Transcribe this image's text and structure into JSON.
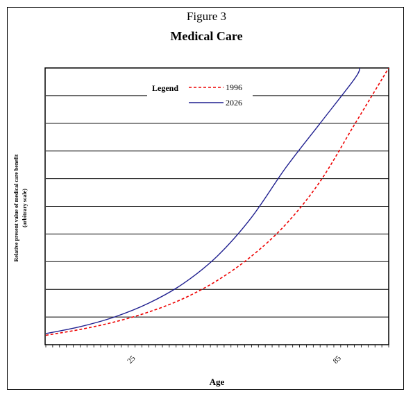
{
  "figure": {
    "label": "Figure 3",
    "title": "Medical Care"
  },
  "chart_data": {
    "type": "line",
    "title": "Medical Care",
    "xlabel": "Age",
    "ylabel_line1": "Relative present value of medical care benefit",
    "ylabel_line2": "(arbitrary scale)",
    "x_tick_labels": [
      {
        "label": "25",
        "x": 25
      },
      {
        "label": "85",
        "x": 85
      }
    ],
    "xlim": [
      0,
      100
    ],
    "ylim": [
      0,
      10
    ],
    "y_tick_labels": [],
    "grid": "horizontal",
    "legend": {
      "title": "Legend",
      "placement": "top-center"
    },
    "series": [
      {
        "name": "1996",
        "style": "dashed",
        "color": "#ee0000",
        "x": [
          0,
          10,
          20,
          30,
          40,
          50,
          60,
          70,
          80,
          90,
          100
        ],
        "y": [
          0.34,
          0.55,
          0.82,
          1.18,
          1.66,
          2.32,
          3.2,
          4.35,
          5.9,
          7.95,
          10.0
        ]
      },
      {
        "name": "2026",
        "style": "solid",
        "color": "#1f1f8f",
        "x": [
          0,
          10,
          20,
          30,
          40,
          50,
          60,
          70,
          80,
          90,
          91.6
        ],
        "y": [
          0.4,
          0.65,
          1.0,
          1.5,
          2.2,
          3.2,
          4.6,
          6.4,
          8.0,
          9.6,
          10.0
        ]
      }
    ]
  }
}
